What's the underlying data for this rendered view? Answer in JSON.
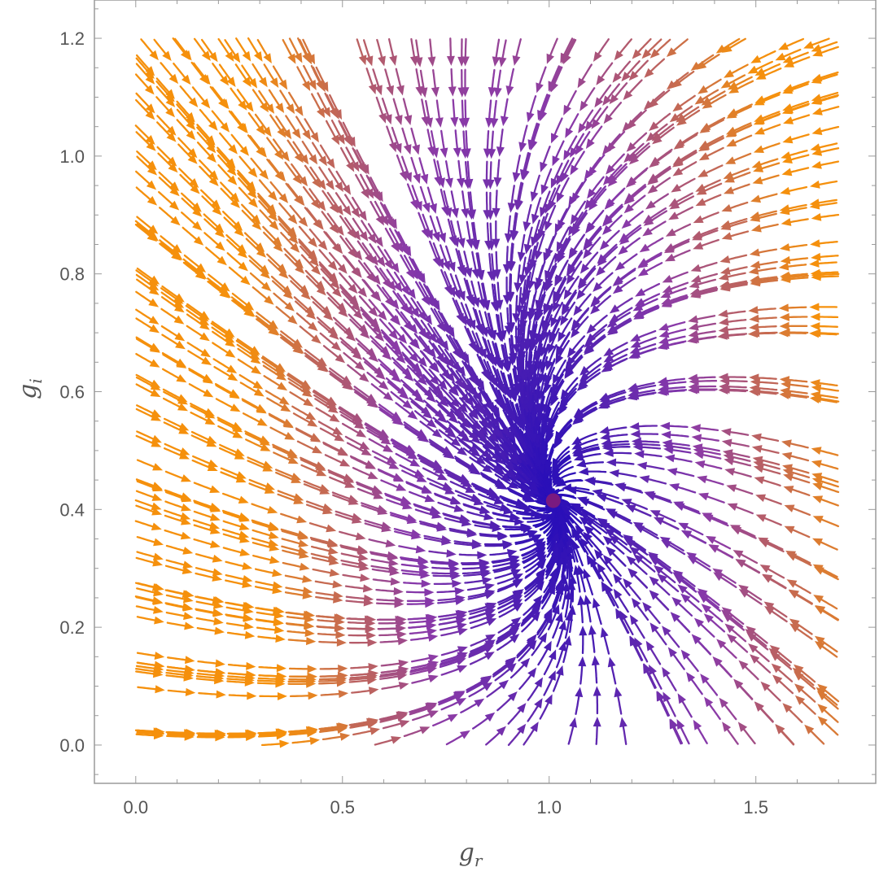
{
  "chart_data": {
    "type": "stream plot",
    "xlabel": {
      "main": "g",
      "sub": "r"
    },
    "ylabel": {
      "main": "g",
      "sub": "i"
    },
    "xlim": [
      -0.1,
      1.79
    ],
    "ylim": [
      -0.065,
      1.265
    ],
    "x_ticks": [
      "0.0",
      "0.5",
      "1.0",
      "1.5"
    ],
    "x_tick_values": [
      0.0,
      0.5,
      1.0,
      1.5
    ],
    "y_ticks": [
      "0.0",
      "0.2",
      "0.4",
      "0.6",
      "0.8",
      "1.0",
      "1.2"
    ],
    "y_tick_values": [
      0.0,
      0.2,
      0.4,
      0.6,
      0.8,
      1.0,
      1.2
    ],
    "grid": false,
    "fixed_point": {
      "x": 1.01,
      "y": 0.415,
      "color": "#7a1a80"
    },
    "field": {
      "equations": "dg_r/dt = -2*(g_r - 1.01) - 0.6*(g_i - 0.415); dg_i/dt = -(g_i - 0.415) + 0.5*(g_r - 1.01)",
      "stream_domain_x": [
        0.0,
        1.7
      ],
      "stream_domain_y": [
        0.0,
        1.2
      ]
    },
    "colormap": {
      "low": "#2a0fb8",
      "mid": "#8a3aa8",
      "high": "#f5900c",
      "meaning": "color encodes speed |v|, low to high"
    }
  }
}
